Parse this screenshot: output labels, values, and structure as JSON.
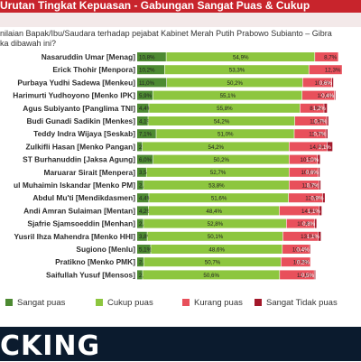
{
  "header": {
    "title": "Urutan Tingkat Kepuasan - Gabungan Sangat Puas & Cukup"
  },
  "question": {
    "line1": "nilaian Bapak/Ibu/Saudara terhadap pejabat Kabinet Merah Putih Prabowo Subianto – Gibra",
    "line2": "ka dibawah ini?"
  },
  "brand": {
    "text": "CKING"
  },
  "colors": {
    "sangat_puas": "#4d8a32",
    "cukup_puas": "#8dc63f",
    "kurang_puas": "#e8505b",
    "sangat_tidak_puas": "#a3182a",
    "header": "#c8242c"
  },
  "chart_data": {
    "type": "bar",
    "orientation": "horizontal",
    "stacked": true,
    "categories": [
      "Nasaruddin Umar [Menag]",
      "Erick Thohir [Menpora]",
      "Purbaya Yudhi Sadewa [Menkeu]",
      "Harimurti Yudhoyono [Menko IPK]",
      "Agus Subiyanto [Panglima TNI]",
      "Budi Gunadi Sadikin [Menkes]",
      "Teddy Indra Wijaya [Seskab]",
      "Zulkifli Hasan [Menko Pangan]",
      "ST Burhanuddin [Jaksa Agung]",
      "Maruarar Sirait [Menpera]",
      "ul Muhaimin Iskandar [Menko PM]",
      "Abdul Mu'ti [Mendikdasmen]",
      "Andi Amran Sulaiman [Mentan]",
      "Sjafrie Sjamsoeddin [Menhan]",
      "Yusril Ihza Mahendra [Menko HHI]",
      "Sugiono [Menlu]",
      "Pratikno [Menko PMK]",
      "Saifullah Yusuf [Mensos]"
    ],
    "series": [
      {
        "name": "Sangat puas",
        "labels": [
          "10,8%",
          "10,2%",
          "11,0%",
          "5,9%",
          "4,4%",
          "4,1%",
          "7,1%",
          "2,0%",
          "6,0%",
          "3,5%",
          "2,4%",
          "4,4%",
          "4,2%",
          "2,4%",
          "3,8%",
          "5,1%",
          "2,5%",
          "2,1%"
        ],
        "values": [
          10.8,
          10.2,
          11.0,
          5.9,
          4.4,
          4.1,
          7.1,
          2.0,
          6.0,
          3.5,
          2.4,
          4.4,
          4.2,
          2.4,
          3.8,
          5.1,
          2.5,
          2.1
        ]
      },
      {
        "name": "Cukup puas",
        "labels": [
          "54,9%",
          "53,3%",
          "50,2%",
          "55,1%",
          "55,8%",
          "54,2%",
          "51,0%",
          "54,2%",
          "50,2%",
          "52,7%",
          "53,8%",
          "51,6%",
          "48,4%",
          "52,8%",
          "50,1%",
          "48,6%",
          "50,7%",
          "50,6%"
        ],
        "values": [
          54.9,
          53.3,
          50.2,
          55.1,
          55.8,
          54.2,
          51.0,
          54.2,
          50.2,
          52.7,
          53.8,
          51.6,
          48.4,
          52.8,
          50.1,
          48.6,
          50.7,
          50.6
        ]
      },
      {
        "name": "Kurang puas",
        "labels": [
          "8,7%",
          "12,3%",
          "10,8%",
          "12,0%",
          "8,9%",
          "11,8%",
          "11,7%",
          "14,0%",
          "10,5%",
          "10,8%",
          "11,0%",
          "12,6%",
          "14,6%",
          "10,4%",
          "13,0%",
          "10,1%",
          "10,9%",
          "12,8%"
        ],
        "values": [
          8.7,
          12.3,
          10.8,
          12.0,
          8.9,
          11.8,
          11.7,
          14.0,
          10.5,
          10.8,
          11.0,
          12.6,
          14.6,
          10.4,
          13.0,
          10.1,
          10.9,
          12.8
        ]
      },
      {
        "name": "Sangat Tidak puas",
        "labels": [
          "",
          "",
          "0,6%",
          "0,4%",
          "1,2%",
          "0,7%",
          "0,7%",
          "2,1%",
          "1,0%",
          "0,6%",
          "0,7%",
          "0,9%",
          "1,1%",
          "0,8%",
          "1,1%",
          "0,4%",
          "0,2%",
          "0,5%"
        ],
        "values": [
          0,
          0,
          0.6,
          0.4,
          1.2,
          0.7,
          0.7,
          2.1,
          1.0,
          0.6,
          0.7,
          0.9,
          1.1,
          0.8,
          1.1,
          0.4,
          0.2,
          0.5
        ]
      }
    ]
  }
}
